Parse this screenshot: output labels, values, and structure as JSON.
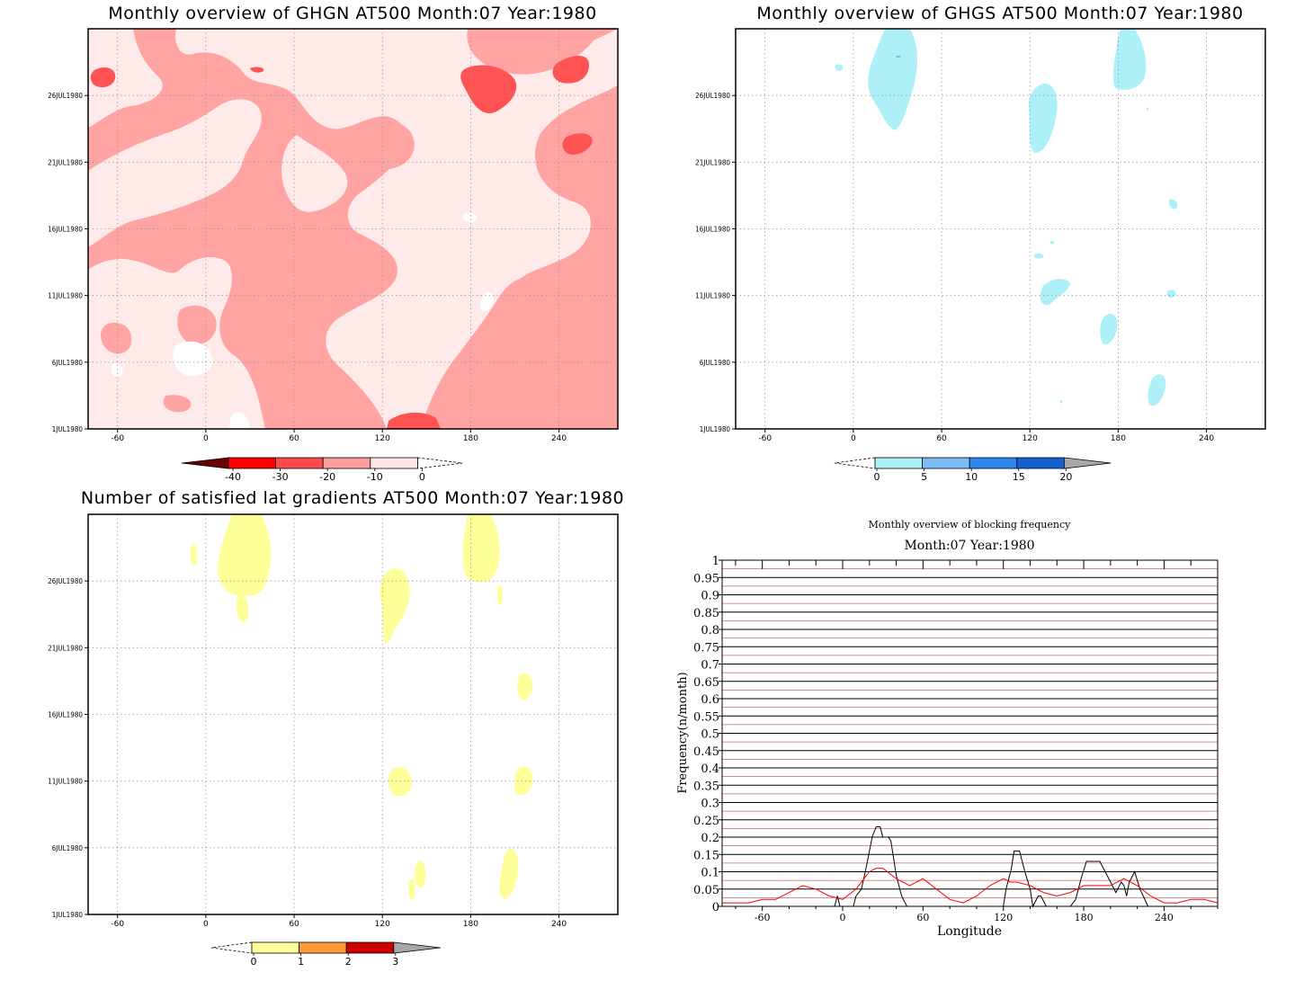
{
  "chart_data": [
    {
      "type": "heatmap",
      "id": "ghgn",
      "title": "Monthly overview of GHGN AT500 Month:07 Year:1980",
      "x_ticks": [
        "-60",
        "0",
        "60",
        "120",
        "180",
        "240"
      ],
      "y_ticks": [
        "1JUL1980",
        "6JUL1980",
        "11JUL1980",
        "16JUL1980",
        "21JUL1980",
        "26JUL1980"
      ],
      "xlim": [
        -80,
        280
      ],
      "ylim": [
        1,
        31
      ],
      "colorbar": {
        "labels": [
          "-40",
          "-30",
          "-20",
          "-10",
          "0"
        ],
        "colors": [
          "#6b0000",
          "#ff0000",
          "#ff4a4a",
          "#ff9e9e",
          "#ffe6e6"
        ]
      },
      "dominant_levels": [
        "#ffa3a3",
        "#ffeaea",
        "#ff5252"
      ]
    },
    {
      "type": "heatmap",
      "id": "ghgs",
      "title": "Monthly overview of GHGS AT500 Month:07 Year:1980",
      "x_ticks": [
        "-60",
        "0",
        "60",
        "120",
        "180",
        "240"
      ],
      "y_ticks": [
        "1JUL1980",
        "6JUL1980",
        "11JUL1980",
        "16JUL1980",
        "21JUL1980",
        "26JUL1980"
      ],
      "xlim": [
        -80,
        280
      ],
      "ylim": [
        1,
        31
      ],
      "colorbar": {
        "labels": [
          "0",
          "5",
          "10",
          "15",
          "20"
        ],
        "colors": [
          "#aef0f8",
          "#7bbcf2",
          "#2e86ee",
          "#1460d0",
          "#a8a8a8"
        ]
      }
    },
    {
      "type": "heatmap",
      "id": "lat",
      "title": "Number of satisfied lat gradients AT500 Month:07 Year:1980",
      "x_ticks": [
        "-60",
        "0",
        "60",
        "120",
        "180",
        "240"
      ],
      "y_ticks": [
        "1JUL1980",
        "6JUL1980",
        "11JUL1980",
        "16JUL1980",
        "21JUL1980",
        "26JUL1980"
      ],
      "xlim": [
        -80,
        280
      ],
      "ylim": [
        1,
        31
      ],
      "colorbar": {
        "labels": [
          "0",
          "1",
          "2",
          "3"
        ],
        "colors": [
          "#ffff99",
          "#ff9933",
          "#cc0000",
          "#a8a8a8"
        ]
      }
    },
    {
      "type": "line",
      "id": "freq",
      "title": "Monthly overview of blocking frequency",
      "subtitle": "Month:07 Year:1980",
      "xlabel": "Longitude",
      "ylabel": "Frequency(n/month)",
      "xlim": [
        -90,
        280
      ],
      "ylim": [
        0,
        1
      ],
      "x_ticks": [
        "-60",
        "0",
        "60",
        "120",
        "180",
        "240"
      ],
      "y_ticks": [
        "0",
        "0.05",
        "0.1",
        "0.15",
        "0.2",
        "0.25",
        "0.3",
        "0.35",
        "0.4",
        "0.45",
        "0.5",
        "0.55",
        "0.6",
        "0.65",
        "0.7",
        "0.75",
        "0.8",
        "0.85",
        "0.9",
        "0.95",
        "1"
      ],
      "series": [
        {
          "color": "#000000",
          "x": [
            -90,
            -6,
            -4,
            -2,
            5,
            8,
            10,
            14,
            18,
            22,
            25,
            28,
            30,
            34,
            36,
            40,
            44,
            48,
            104,
            120,
            122,
            126,
            128,
            132,
            136,
            140,
            142,
            146,
            148,
            152,
            170,
            174,
            178,
            182,
            186,
            192,
            200,
            204,
            208,
            210,
            212,
            214,
            218,
            222,
            228
          ],
          "y": [
            0,
            0,
            0.03,
            0,
            0,
            0,
            0.03,
            0.05,
            0.12,
            0.2,
            0.23,
            0.23,
            0.2,
            0.2,
            0.19,
            0.09,
            0.03,
            0,
            0,
            0,
            0.05,
            0.11,
            0.16,
            0.16,
            0.1,
            0.05,
            0,
            0.03,
            0.03,
            0,
            0,
            0.02,
            0.08,
            0.13,
            0.13,
            0.13,
            0.07,
            0.04,
            0.07,
            0.06,
            0.03,
            0.07,
            0.1,
            0.05,
            0
          ]
        },
        {
          "color": "#ff0000",
          "x": [
            -90,
            -80,
            -70,
            -60,
            -50,
            -40,
            -30,
            -20,
            -10,
            0,
            10,
            20,
            25,
            30,
            40,
            50,
            60,
            70,
            80,
            90,
            100,
            110,
            120,
            125,
            130,
            140,
            150,
            160,
            170,
            180,
            190,
            200,
            210,
            220,
            230,
            240,
            250,
            260,
            270,
            280
          ],
          "y": [
            0.01,
            0.01,
            0.01,
            0.02,
            0.02,
            0.04,
            0.06,
            0.05,
            0.03,
            0.02,
            0.05,
            0.1,
            0.11,
            0.11,
            0.08,
            0.06,
            0.08,
            0.05,
            0.02,
            0.01,
            0.03,
            0.06,
            0.08,
            0.07,
            0.07,
            0.06,
            0.04,
            0.03,
            0.04,
            0.06,
            0.06,
            0.06,
            0.08,
            0.06,
            0.03,
            0.01,
            0.01,
            0.02,
            0.02,
            0.01
          ]
        }
      ]
    }
  ]
}
